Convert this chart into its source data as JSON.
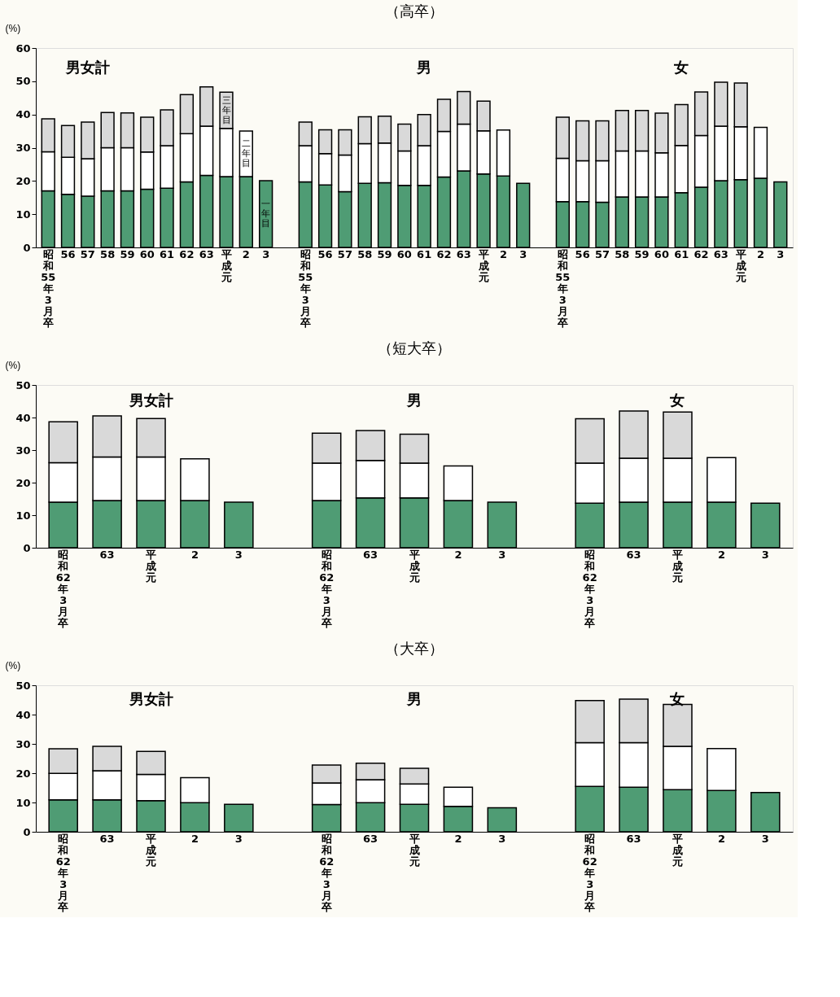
{
  "chart_data": [
    {
      "type": "bar",
      "stacked": true,
      "title": "（高卒）",
      "ylabel": "(%)",
      "ylim": [
        0,
        60
      ],
      "yticks": [
        0,
        10,
        20,
        30,
        40,
        50,
        60
      ],
      "annotations": [
        "男女計",
        "男",
        "女"
      ],
      "categories": [
        "昭和55年3月卒",
        "56",
        "57",
        "58",
        "59",
        "60",
        "61",
        "62",
        "63",
        "平成元",
        "2",
        "3",
        null,
        "昭和55年3月卒",
        "56",
        "57",
        "58",
        "59",
        "60",
        "61",
        "62",
        "63",
        "平成元",
        "2",
        "3",
        null,
        "昭和55年3月卒",
        "56",
        "57",
        "58",
        "59",
        "60",
        "61",
        "62",
        "63",
        "平成元",
        "2",
        "3"
      ],
      "series": [
        {
          "name": "一年目",
          "color": "#4f9c74",
          "values": [
            17.0,
            16.0,
            15.4,
            17.0,
            17.0,
            17.5,
            17.8,
            19.7,
            21.7,
            21.3,
            21.3,
            20.1,
            null,
            19.7,
            18.8,
            16.8,
            19.3,
            19.5,
            18.7,
            18.7,
            21.2,
            23.0,
            22.1,
            21.5,
            19.3,
            null,
            13.8,
            13.8,
            13.6,
            15.2,
            15.2,
            15.2,
            16.5,
            18.1,
            20.1,
            20.4,
            20.8,
            19.7
          ]
        },
        {
          "name": "二年目",
          "color": "#ffffff",
          "values": [
            11.8,
            11.1,
            11.3,
            13.0,
            13.0,
            11.2,
            12.8,
            14.5,
            14.8,
            14.5,
            13.7,
            null,
            null,
            10.9,
            9.4,
            11.0,
            11.9,
            11.9,
            10.3,
            11.9,
            13.7,
            14.1,
            13.0,
            13.8,
            null,
            null,
            13.0,
            12.3,
            12.5,
            13.8,
            13.8,
            13.3,
            14.2,
            15.6,
            16.4,
            15.9,
            15.3,
            null
          ]
        },
        {
          "name": "三年目",
          "color": "#d9d9d9",
          "values": [
            9.9,
            9.6,
            11.0,
            10.6,
            10.5,
            10.5,
            10.8,
            11.8,
            11.8,
            10.9,
            null,
            null,
            null,
            7.1,
            7.2,
            7.6,
            8.1,
            8.1,
            8.1,
            9.4,
            9.7,
            9.8,
            8.9,
            null,
            null,
            null,
            12.4,
            12.0,
            12.0,
            12.2,
            12.2,
            11.9,
            12.3,
            13.1,
            13.2,
            13.2,
            null,
            null
          ]
        }
      ]
    },
    {
      "type": "bar",
      "stacked": true,
      "title": "（短大卒）",
      "ylabel": "(%)",
      "ylim": [
        0,
        50
      ],
      "yticks": [
        0,
        10,
        20,
        30,
        40,
        50
      ],
      "annotations": [
        "男女計",
        "男",
        "女"
      ],
      "categories": [
        "昭和62年3月卒",
        "63",
        "平成元",
        "2",
        "3",
        null,
        "昭和62年3月卒",
        "63",
        "平成元",
        "2",
        "3",
        null,
        "昭和62年3月卒",
        "63",
        "平成元",
        "2",
        "3"
      ],
      "series": [
        {
          "color": "#4f9c74",
          "values": [
            14.0,
            14.5,
            14.5,
            14.5,
            14.0,
            null,
            14.5,
            15.3,
            15.3,
            14.5,
            14.0,
            null,
            13.7,
            14.0,
            14.0,
            14.0,
            13.7
          ]
        },
        {
          "color": "#ffffff",
          "values": [
            12.1,
            13.4,
            13.4,
            12.8,
            null,
            null,
            11.5,
            11.5,
            10.7,
            10.6,
            null,
            null,
            12.3,
            13.5,
            13.5,
            13.7,
            null
          ]
        },
        {
          "color": "#d9d9d9",
          "values": [
            12.6,
            12.6,
            11.8,
            null,
            null,
            null,
            9.2,
            9.2,
            8.9,
            null,
            null,
            null,
            13.6,
            14.5,
            14.2,
            null,
            null
          ]
        }
      ]
    },
    {
      "type": "bar",
      "stacked": true,
      "title": "（大卒）",
      "ylabel": "(%)",
      "ylim": [
        0,
        50
      ],
      "yticks": [
        0,
        10,
        20,
        30,
        40,
        50
      ],
      "annotations": [
        "男女計",
        "男",
        "女"
      ],
      "categories": [
        "昭和62年3月卒",
        "63",
        "平成元",
        "2",
        "3",
        null,
        "昭和62年3月卒",
        "63",
        "平成元",
        "2",
        "3",
        null,
        "昭和62年3月卒",
        "63",
        "平成元",
        "2",
        "3"
      ],
      "series": [
        {
          "color": "#4f9c74",
          "values": [
            10.9,
            10.9,
            10.6,
            9.9,
            9.4,
            null,
            9.3,
            9.9,
            9.4,
            8.7,
            8.2,
            null,
            15.5,
            15.2,
            14.4,
            14.1,
            13.4
          ]
        },
        {
          "color": "#ffffff",
          "values": [
            9.0,
            9.9,
            9.0,
            8.6,
            null,
            null,
            7.4,
            7.9,
            6.9,
            6.5,
            null,
            null,
            14.9,
            15.2,
            14.8,
            14.3,
            null
          ]
        },
        {
          "color": "#d9d9d9",
          "values": [
            8.4,
            8.4,
            7.8,
            null,
            null,
            null,
            6.1,
            5.6,
            5.4,
            null,
            null,
            null,
            14.4,
            14.9,
            14.3,
            null,
            null
          ]
        }
      ]
    }
  ]
}
